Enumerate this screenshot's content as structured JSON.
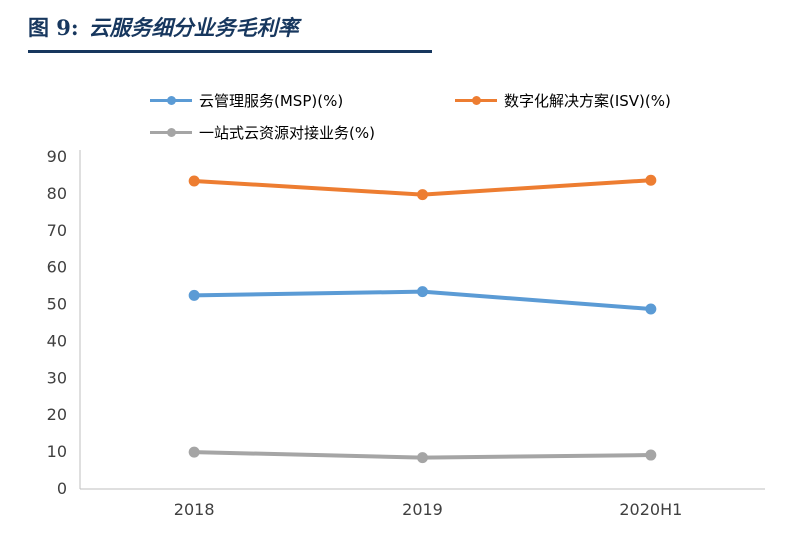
{
  "header": {
    "label": "图 9:",
    "title": "云服务细分业务毛利率"
  },
  "chart_data": {
    "type": "line",
    "categories": [
      "2018",
      "2019",
      "2020H1"
    ],
    "series": [
      {
        "name": "云管理服务(MSP)(%)",
        "color": "#5B9BD5",
        "values": [
          52.5,
          53.5,
          48.8
        ]
      },
      {
        "name": "数字化解决方案(ISV)(%)",
        "color": "#ED7D31",
        "values": [
          83.5,
          79.8,
          83.7
        ]
      },
      {
        "name": "一站式云资源对接业务(%)",
        "color": "#A5A5A5",
        "values": [
          10.0,
          8.5,
          9.2
        ]
      }
    ],
    "title": "云服务细分业务毛利率",
    "xlabel": "",
    "ylabel": "",
    "ylim": [
      0,
      90
    ],
    "ytick_step": 10,
    "grid": false,
    "legend_position": "top"
  },
  "colors": {
    "title_text": "#17375E",
    "axis_text": "#404040",
    "axis_line": "#BFBFBF"
  }
}
